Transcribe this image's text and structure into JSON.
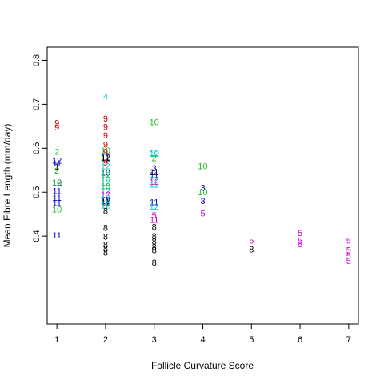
{
  "chart_data": {
    "type": "scatter",
    "title": "",
    "xlabel": "Follicle Curvature Score",
    "ylabel": "Mean Fibre Length (mm/day)",
    "xlim": [
      0.8,
      7.2
    ],
    "ylim": [
      0.2,
      0.83
    ],
    "x_ticks": [
      1,
      2,
      3,
      4,
      5,
      6,
      7
    ],
    "y_ticks": [
      0.4,
      0.5,
      0.6,
      0.7,
      0.8
    ],
    "grid": false,
    "points": [
      {
        "x": 1,
        "y": 0.658,
        "label": "9",
        "color": "#cc0000"
      },
      {
        "x": 1,
        "y": 0.648,
        "label": "9",
        "color": "#cc0000"
      },
      {
        "x": 1,
        "y": 0.592,
        "label": "2",
        "color": "#22bb22"
      },
      {
        "x": 1,
        "y": 0.572,
        "label": "12",
        "color": "#0000cc"
      },
      {
        "x": 1,
        "y": 0.566,
        "label": "11",
        "color": "#0000cc"
      },
      {
        "x": 1,
        "y": 0.559,
        "label": "1",
        "color": "#000000"
      },
      {
        "x": 1,
        "y": 0.55,
        "label": "2",
        "color": "#22bb22"
      },
      {
        "x": 1,
        "y": 0.522,
        "label": "12",
        "color": "#0000cc"
      },
      {
        "x": 1,
        "y": 0.522,
        "label": "10",
        "color": "#22bb22"
      },
      {
        "x": 1,
        "y": 0.503,
        "label": "11",
        "color": "#0000cc"
      },
      {
        "x": 1,
        "y": 0.488,
        "label": "11",
        "color": "#0000cc"
      },
      {
        "x": 1,
        "y": 0.476,
        "label": "11",
        "color": "#0000cc"
      },
      {
        "x": 1,
        "y": 0.461,
        "label": "10",
        "color": "#22bb22"
      },
      {
        "x": 1,
        "y": 0.402,
        "label": "11",
        "color": "#0000cc"
      },
      {
        "x": 2,
        "y": 0.718,
        "label": "4",
        "color": "#00cccc"
      },
      {
        "x": 2,
        "y": 0.668,
        "label": "9",
        "color": "#cc0000"
      },
      {
        "x": 2,
        "y": 0.649,
        "label": "9",
        "color": "#cc0000"
      },
      {
        "x": 2,
        "y": 0.63,
        "label": "9",
        "color": "#cc0000"
      },
      {
        "x": 2,
        "y": 0.609,
        "label": "9",
        "color": "#cc0000"
      },
      {
        "x": 2,
        "y": 0.595,
        "label": "10",
        "color": "#22bb22"
      },
      {
        "x": 2,
        "y": 0.592,
        "label": "9",
        "color": "#cc0000"
      },
      {
        "x": 2,
        "y": 0.58,
        "label": "12",
        "color": "#0000cc"
      },
      {
        "x": 2,
        "y": 0.578,
        "label": "11",
        "color": "#000000"
      },
      {
        "x": 2,
        "y": 0.568,
        "label": "9",
        "color": "#cc0000"
      },
      {
        "x": 2,
        "y": 0.56,
        "label": "12",
        "color": "#00cccc"
      },
      {
        "x": 2,
        "y": 0.545,
        "label": "10",
        "color": "#000000"
      },
      {
        "x": 2,
        "y": 0.54,
        "label": "12",
        "color": "#00cccc"
      },
      {
        "x": 2,
        "y": 0.53,
        "label": "10",
        "color": "#22bb22"
      },
      {
        "x": 2,
        "y": 0.522,
        "label": "12",
        "color": "#00cccc"
      },
      {
        "x": 2,
        "y": 0.514,
        "label": "10",
        "color": "#22bb22"
      },
      {
        "x": 2,
        "y": 0.503,
        "label": "12",
        "color": "#00cccc"
      },
      {
        "x": 2,
        "y": 0.495,
        "label": "12",
        "color": "#cc00cc"
      },
      {
        "x": 2,
        "y": 0.487,
        "label": "12",
        "color": "#00cccc"
      },
      {
        "x": 2,
        "y": 0.48,
        "label": "12",
        "color": "#0000cc"
      },
      {
        "x": 2,
        "y": 0.478,
        "label": "11",
        "color": "#000000"
      },
      {
        "x": 2,
        "y": 0.47,
        "label": "12",
        "color": "#00cccc"
      },
      {
        "x": 2,
        "y": 0.458,
        "label": "8",
        "color": "#000000"
      },
      {
        "x": 2,
        "y": 0.419,
        "label": "8",
        "color": "#000000"
      },
      {
        "x": 2,
        "y": 0.399,
        "label": "8",
        "color": "#000000"
      },
      {
        "x": 2,
        "y": 0.381,
        "label": "8",
        "color": "#000000"
      },
      {
        "x": 2,
        "y": 0.372,
        "label": "8",
        "color": "#000000"
      },
      {
        "x": 2,
        "y": 0.363,
        "label": "8",
        "color": "#000000"
      },
      {
        "x": 3,
        "y": 0.66,
        "label": "10",
        "color": "#22bb22"
      },
      {
        "x": 3,
        "y": 0.59,
        "label": "10",
        "color": "#00cccc"
      },
      {
        "x": 3,
        "y": 0.588,
        "label": "12",
        "color": "#00cccc"
      },
      {
        "x": 3,
        "y": 0.578,
        "label": "2",
        "color": "#22bb22"
      },
      {
        "x": 3,
        "y": 0.555,
        "label": "3",
        "color": "#0000cc"
      },
      {
        "x": 3,
        "y": 0.546,
        "label": "11",
        "color": "#000000"
      },
      {
        "x": 3,
        "y": 0.54,
        "label": "11",
        "color": "#0000cc"
      },
      {
        "x": 3,
        "y": 0.53,
        "label": "12",
        "color": "#00cccc"
      },
      {
        "x": 3,
        "y": 0.524,
        "label": "12",
        "color": "#cc00cc"
      },
      {
        "x": 3,
        "y": 0.518,
        "label": "12",
        "color": "#00cccc"
      },
      {
        "x": 3,
        "y": 0.478,
        "label": "11",
        "color": "#0000cc"
      },
      {
        "x": 3,
        "y": 0.468,
        "label": "12",
        "color": "#00cccc"
      },
      {
        "x": 3,
        "y": 0.448,
        "label": "5",
        "color": "#cc00cc"
      },
      {
        "x": 3,
        "y": 0.438,
        "label": "11",
        "color": "#cc00cc"
      },
      {
        "x": 3,
        "y": 0.421,
        "label": "8",
        "color": "#000000"
      },
      {
        "x": 3,
        "y": 0.4,
        "label": "8",
        "color": "#000000"
      },
      {
        "x": 3,
        "y": 0.388,
        "label": "8",
        "color": "#000000"
      },
      {
        "x": 3,
        "y": 0.376,
        "label": "8",
        "color": "#000000"
      },
      {
        "x": 3,
        "y": 0.368,
        "label": "8",
        "color": "#000000"
      },
      {
        "x": 3,
        "y": 0.34,
        "label": "8",
        "color": "#000000"
      },
      {
        "x": 4,
        "y": 0.56,
        "label": "10",
        "color": "#22bb22"
      },
      {
        "x": 4,
        "y": 0.51,
        "label": "3",
        "color": "#0000cc"
      },
      {
        "x": 4,
        "y": 0.5,
        "label": "10",
        "color": "#22bb22"
      },
      {
        "x": 4,
        "y": 0.48,
        "label": "3",
        "color": "#0000cc"
      },
      {
        "x": 4,
        "y": 0.452,
        "label": "5",
        "color": "#cc00cc"
      },
      {
        "x": 5,
        "y": 0.39,
        "label": "5",
        "color": "#cc00cc"
      },
      {
        "x": 5,
        "y": 0.37,
        "label": "8",
        "color": "#000000"
      },
      {
        "x": 6,
        "y": 0.408,
        "label": "5",
        "color": "#cc00cc"
      },
      {
        "x": 6,
        "y": 0.39,
        "label": "5",
        "color": "#cc00cc"
      },
      {
        "x": 6,
        "y": 0.382,
        "label": "8",
        "color": "#cc00cc"
      },
      {
        "x": 7,
        "y": 0.39,
        "label": "5",
        "color": "#cc00cc"
      },
      {
        "x": 7,
        "y": 0.368,
        "label": "5",
        "color": "#cc00cc"
      },
      {
        "x": 7,
        "y": 0.356,
        "label": "5",
        "color": "#cc00cc"
      },
      {
        "x": 7,
        "y": 0.344,
        "label": "5",
        "color": "#cc00cc"
      }
    ]
  }
}
